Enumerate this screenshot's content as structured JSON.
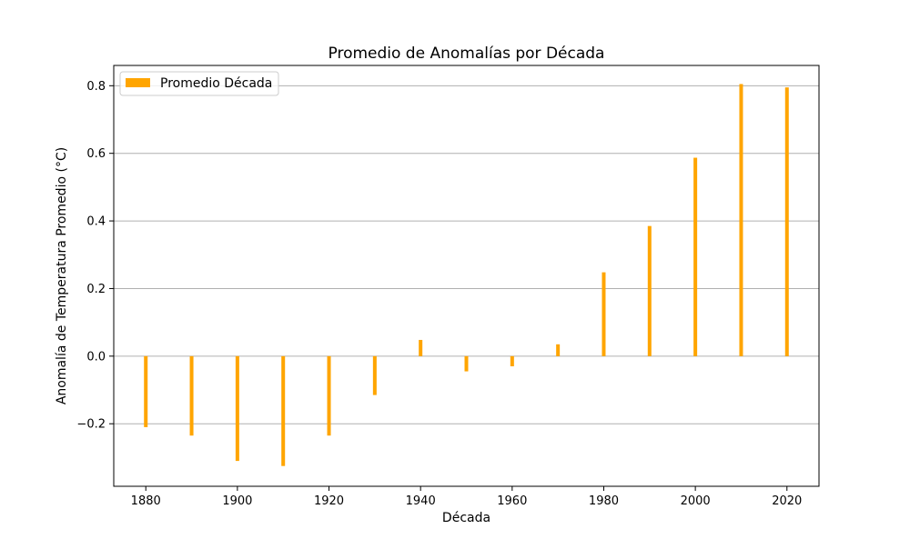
{
  "chart_data": {
    "type": "bar",
    "title": "Promedio de Anomalías por Década",
    "xlabel": "Década",
    "ylabel": "Anomalía de Temperatura Promedio (°C)",
    "x": [
      1880,
      1890,
      1900,
      1910,
      1920,
      1930,
      1940,
      1950,
      1960,
      1970,
      1980,
      1990,
      2000,
      2010,
      2020
    ],
    "series": [
      {
        "name": "Promedio Década",
        "values": [
          -0.21,
          -0.235,
          -0.31,
          -0.325,
          -0.235,
          -0.115,
          0.048,
          -0.045,
          -0.03,
          0.035,
          0.248,
          0.385,
          0.587,
          0.805,
          0.795
        ],
        "color": "#ffa500"
      }
    ],
    "xlim": [
      1873,
      2027
    ],
    "ylim": [
      -0.385,
      0.86
    ],
    "xticks": [
      1880,
      1900,
      1920,
      1940,
      1960,
      1980,
      2000,
      2020
    ],
    "xtick_labels": [
      "1880",
      "1900",
      "1920",
      "1940",
      "1960",
      "1980",
      "2000",
      "2020"
    ],
    "yticks": [
      -0.2,
      0.0,
      0.2,
      0.4,
      0.6,
      0.8
    ],
    "ytick_labels": [
      "−0.2",
      "0.0",
      "0.2",
      "0.4",
      "0.6",
      "0.8"
    ],
    "grid": "y",
    "grid_color": "#b0b0b0",
    "legend_position": "top-left"
  }
}
